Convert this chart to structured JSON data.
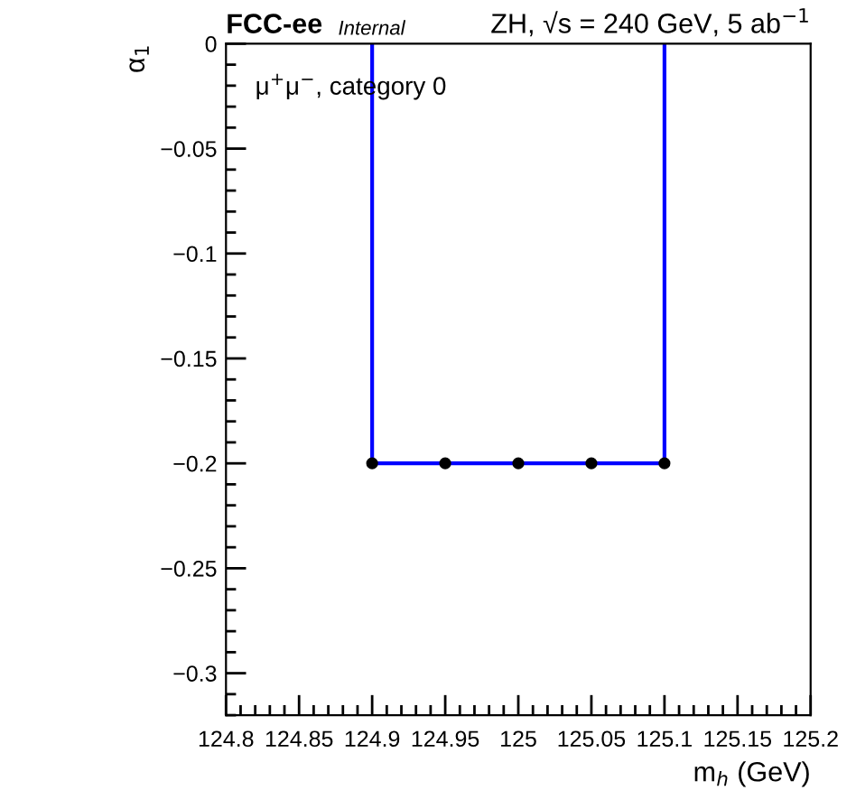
{
  "chart_data": {
    "type": "line",
    "title": "FCC-ee",
    "subtitle": "Internal",
    "xlabel": "m$_{h}$ (GeV)",
    "ylabel": "α$_{1}$",
    "annotations": [
      "ZH, √s = 240 GeV, 5 ab$^{−1}$",
      "μ$^{+}$μ$^{−}$, category 0"
    ],
    "series": [
      {
        "color": "#0000ff",
        "x": [
          124.9,
          124.9,
          125.1,
          125.1
        ],
        "values": [
          0,
          -0.2,
          -0.2,
          0
        ],
        "marker": "none"
      },
      {
        "type": "scatter",
        "color": "#000000",
        "x": [
          124.9,
          124.95,
          125,
          125.05,
          125.1
        ],
        "values": [
          -0.2,
          -0.2,
          -0.2,
          -0.2,
          -0.2
        ],
        "marker": "circle"
      }
    ],
    "xlim": [
      124.8,
      125.2
    ],
    "ylim": [
      -0.32,
      0
    ],
    "xticks": [
      124.8,
      124.85,
      124.9,
      124.95,
      125,
      125.05,
      125.1,
      125.15,
      125.2
    ],
    "yticks": [
      0,
      {
        "value": -0.05,
        "label": "−0.05"
      },
      {
        "value": -0.1,
        "label": "−0.1"
      },
      {
        "value": -0.15,
        "label": "−0.15"
      },
      {
        "value": -0.2,
        "label": "−0.2"
      },
      {
        "value": -0.25,
        "label": "−0.25"
      },
      {
        "value": -0.3,
        "label": "−0.3"
      }
    ],
    "grid": false,
    "legend": false
  }
}
